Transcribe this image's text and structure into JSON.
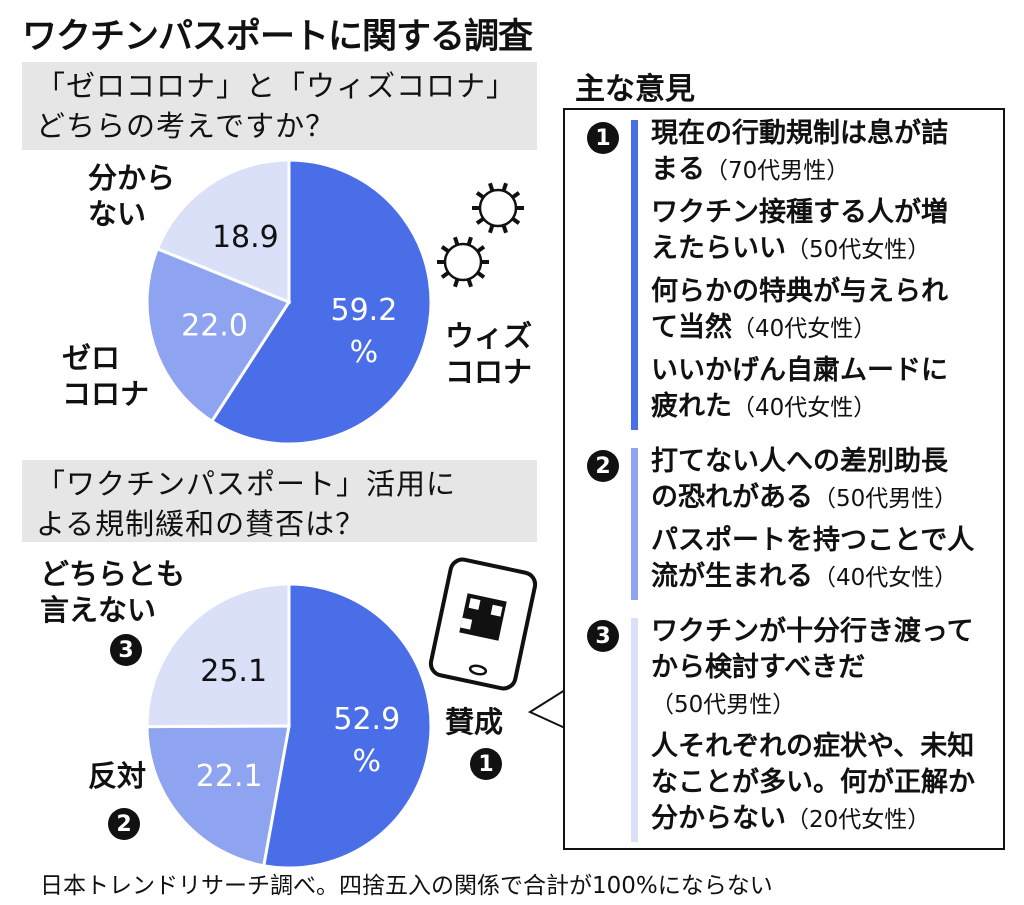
{
  "title": "ワクチンパスポートに関する調査",
  "chart_data": [
    {
      "type": "pie",
      "title": "「ゼロコロナ」と「ウィズコロナ」どちらの考えですか？",
      "unit": "%",
      "slices": [
        {
          "label": "ウィズコロナ",
          "value": 59.2,
          "color": "#4a6ee8"
        },
        {
          "label": "ゼロコロナ",
          "value": 22.0,
          "color": "#8ea4f0"
        },
        {
          "label": "分からない",
          "value": 18.9,
          "color": "#d9e0f8"
        }
      ]
    },
    {
      "type": "pie",
      "title": "「ワクチンパスポート」活用による規制緩和の賛否は？",
      "unit": "%",
      "slices": [
        {
          "label": "賛成",
          "num": "1",
          "value": 52.9,
          "color": "#4a6ee8"
        },
        {
          "label": "反対",
          "num": "2",
          "value": 22.1,
          "color": "#8ea4f0"
        },
        {
          "label": "どちらとも言えない",
          "num": "3",
          "value": 25.1,
          "color": "#d9e0f8"
        }
      ]
    }
  ],
  "q1": {
    "line1": "「ゼロコロナ」と「ウィズコロナ」",
    "line2": "どちらの考えですか？",
    "labels": {
      "with1": "ウィズ",
      "with2": "コロナ",
      "zero1": "ゼロ",
      "zero2": "コロナ",
      "unk1": "分から",
      "unk2": "ない"
    },
    "v1": "59.2",
    "v2": "22.0",
    "v3": "18.9",
    "pct": "%"
  },
  "q2": {
    "line1": "「ワクチンパスポート」活用に",
    "line2": "よる規制緩和の賛否は？",
    "labels": {
      "yes": "賛成",
      "no": "反対",
      "neither1": "どちらとも",
      "neither2": "言えない"
    },
    "n1": "1",
    "n2": "2",
    "n3": "3",
    "v1": "52.9",
    "v2": "22.1",
    "v3": "25.1",
    "pct": "%"
  },
  "panel": {
    "title": "主な意見",
    "sections": [
      {
        "num": "1",
        "color": "#4a6ee8",
        "opinions": [
          {
            "l1": "現在の行動規制は息が詰",
            "l2": "まる",
            "who": "（70代男性）"
          },
          {
            "l1": "ワクチン接種する人が増",
            "l2": "えたらいい",
            "who": "（50代女性）"
          },
          {
            "l1": "何らかの特典が与えられ",
            "l2": "て当然",
            "who": "（40代女性）"
          },
          {
            "l1": "いいかげん自粛ムードに",
            "l2": "疲れた",
            "who": "（40代女性）"
          }
        ]
      },
      {
        "num": "2",
        "color": "#8ea4f0",
        "opinions": [
          {
            "l1": "打てない人への差別助長",
            "l2": "の恐れがある",
            "who": "（50代男性）"
          },
          {
            "l1": "パスポートを持つことで人",
            "l2": "流が生まれる",
            "who": "（40代女性）"
          }
        ]
      },
      {
        "num": "3",
        "color": "#d9e0f8",
        "opinions": [
          {
            "l1": "ワクチンが十分行き渡って",
            "l2": "から検討すべきだ",
            "who": "（50代男性）"
          },
          {
            "l1": "人それぞれの症状や、未知",
            "l2": "なことが多い。何が正解か",
            "l3": "分からない",
            "who": "（20代女性）"
          }
        ]
      }
    ]
  },
  "footnote": "日本トレンドリサーチ調べ。四捨五入の関係で合計が100%にならない"
}
